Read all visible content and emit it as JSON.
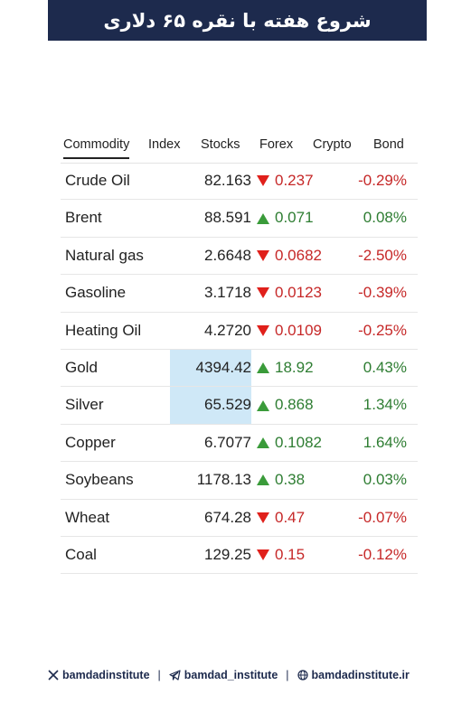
{
  "header": {
    "title": "شروع هفته با نقره ۶۵ دلاری"
  },
  "tabs": {
    "items": [
      "Commodity",
      "Index",
      "Stocks",
      "Forex",
      "Crypto",
      "Bond"
    ],
    "active": 0
  },
  "table": {
    "rows": [
      {
        "name": "Crude Oil",
        "price": "82.163",
        "change": "0.237",
        "percent": "-0.29%",
        "direction": "down",
        "highlight": false
      },
      {
        "name": "Brent",
        "price": "88.591",
        "change": "0.071",
        "percent": "0.08%",
        "direction": "up",
        "highlight": false
      },
      {
        "name": "Natural gas",
        "price": "2.6648",
        "change": "0.0682",
        "percent": "-2.50%",
        "direction": "down",
        "highlight": false
      },
      {
        "name": "Gasoline",
        "price": "3.1718",
        "change": "0.0123",
        "percent": "-0.39%",
        "direction": "down",
        "highlight": false
      },
      {
        "name": "Heating Oil",
        "price": "4.2720",
        "change": "0.0109",
        "percent": "-0.25%",
        "direction": "down",
        "highlight": false
      },
      {
        "name": "Gold",
        "price": "4394.42",
        "change": "18.92",
        "percent": "0.43%",
        "direction": "up",
        "highlight": true
      },
      {
        "name": "Silver",
        "price": "65.529",
        "change": "0.868",
        "percent": "1.34%",
        "direction": "up",
        "highlight": true
      },
      {
        "name": "Copper",
        "price": "6.7077",
        "change": "0.1082",
        "percent": "1.64%",
        "direction": "up",
        "highlight": false
      },
      {
        "name": "Soybeans",
        "price": "1178.13",
        "change": "0.38",
        "percent": "0.03%",
        "direction": "up",
        "highlight": false
      },
      {
        "name": "Wheat",
        "price": "674.28",
        "change": "0.47",
        "percent": "-0.07%",
        "direction": "down",
        "highlight": false
      },
      {
        "name": "Coal",
        "price": "129.25",
        "change": "0.15",
        "percent": "-0.12%",
        "direction": "down",
        "highlight": false
      }
    ]
  },
  "footer": {
    "links": [
      "bamdadinstitute",
      "bamdad_institute",
      "bamdadinstitute.ir"
    ]
  }
}
